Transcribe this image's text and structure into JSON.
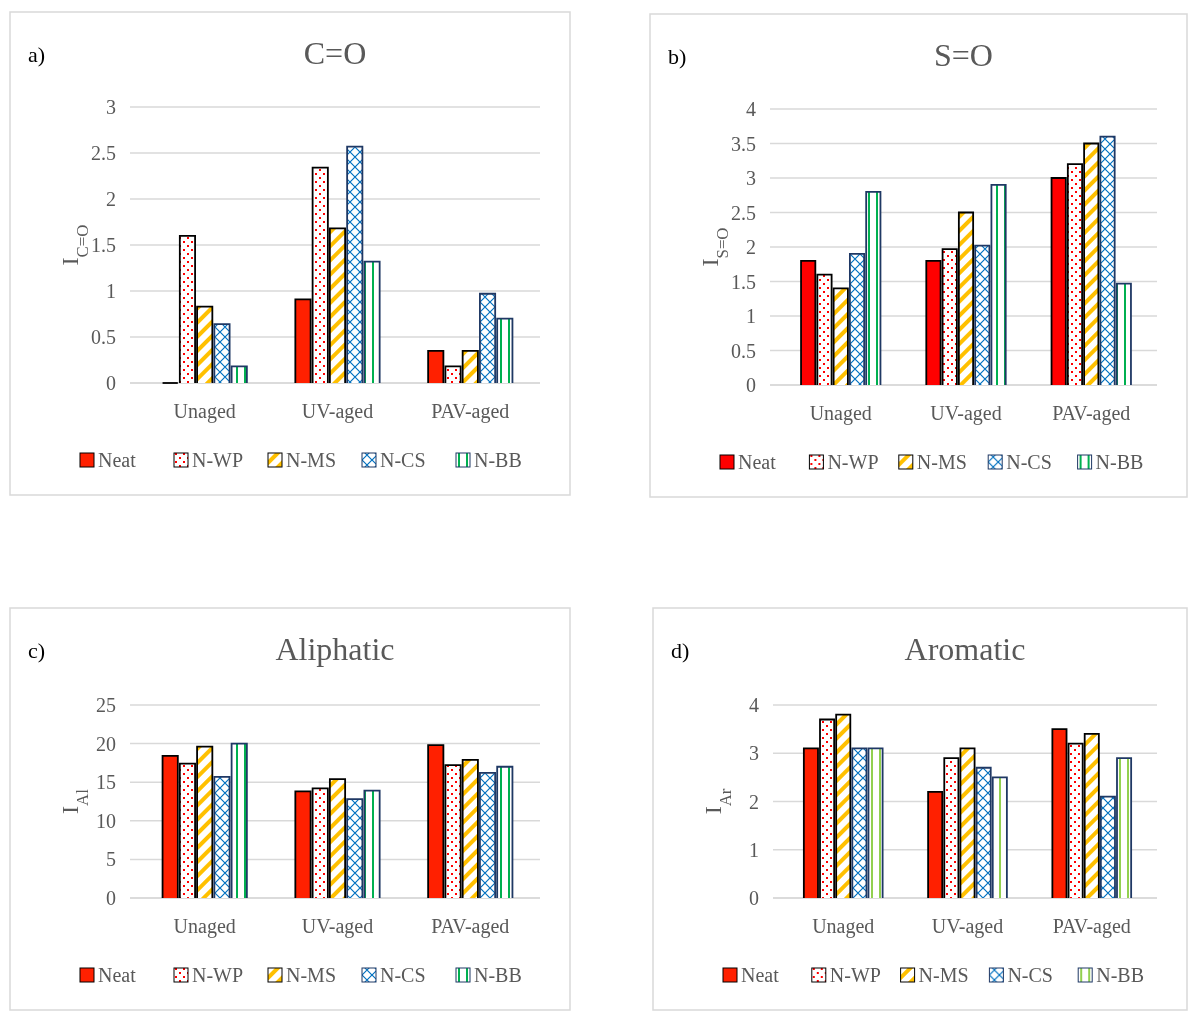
{
  "chart_data": [
    {
      "type": "bar",
      "title": "C=O",
      "ylabel": "I$_{C=O}$",
      "annotations": [
        "a)"
      ],
      "categories": [
        "Unaged",
        "UV-aged",
        "PAV-aged"
      ],
      "ylim": [
        0,
        3
      ],
      "yticks": [
        0,
        0.5,
        1,
        1.5,
        2,
        2.5,
        3
      ],
      "grid": "y",
      "legend": "bottom",
      "series": [
        {
          "name": "Neat",
          "color": "#ff2000",
          "values": [
            0,
            0.91,
            0.35
          ]
        },
        {
          "name": "N-WP",
          "color": "#ff0000",
          "values": [
            1.6,
            2.34,
            0.18
          ]
        },
        {
          "name": "N-MS",
          "color": "#ffc000",
          "values": [
            0.83,
            1.68,
            0.35
          ]
        },
        {
          "name": "N-CS",
          "color": "#0070c0",
          "values": [
            0.64,
            2.57,
            0.97
          ]
        },
        {
          "name": "N-BB",
          "color": "#00b050",
          "values": [
            0.18,
            1.32,
            0.7
          ]
        }
      ]
    },
    {
      "type": "bar",
      "title": "S=O",
      "ylabel": "I$_{S=O}$",
      "annotations": [
        "b)"
      ],
      "categories": [
        "Unaged",
        "UV-aged",
        "PAV-aged"
      ],
      "ylim": [
        0,
        4
      ],
      "yticks": [
        0,
        0.5,
        1,
        1.5,
        2,
        2.5,
        3,
        3.5,
        4
      ],
      "grid": "y",
      "legend": "bottom",
      "series": [
        {
          "name": "Neat",
          "color": "#ff0000",
          "values": [
            1.8,
            1.8,
            3.0
          ]
        },
        {
          "name": "N-WP",
          "color": "#ff0000",
          "values": [
            1.6,
            1.97,
            3.2
          ]
        },
        {
          "name": "N-MS",
          "color": "#ffc000",
          "values": [
            1.4,
            2.5,
            3.5
          ]
        },
        {
          "name": "N-CS",
          "color": "#0070c0",
          "values": [
            1.9,
            2.02,
            3.6
          ]
        },
        {
          "name": "N-BB",
          "color": "#00b050",
          "values": [
            2.8,
            2.9,
            1.47
          ]
        }
      ]
    },
    {
      "type": "bar",
      "title": "Aliphatic",
      "ylabel": "I$_{Al}$",
      "annotations": [
        "c)"
      ],
      "categories": [
        "Unaged",
        "UV-aged",
        "PAV-aged"
      ],
      "ylim": [
        0,
        25
      ],
      "yticks": [
        0,
        5,
        10,
        15,
        20,
        25
      ],
      "grid": "y",
      "legend": "bottom",
      "series": [
        {
          "name": "Neat",
          "color": "#ff2000",
          "values": [
            18.4,
            13.8,
            19.8
          ]
        },
        {
          "name": "N-WP",
          "color": "#ff0000",
          "values": [
            17.4,
            14.2,
            17.2
          ]
        },
        {
          "name": "N-MS",
          "color": "#ffc000",
          "values": [
            19.6,
            15.4,
            17.9
          ]
        },
        {
          "name": "N-CS",
          "color": "#0070c0",
          "values": [
            15.7,
            12.8,
            16.2
          ]
        },
        {
          "name": "N-BB",
          "color": "#00b050",
          "values": [
            20.0,
            13.9,
            17.0
          ]
        }
      ]
    },
    {
      "type": "bar",
      "title": "Aromatic",
      "ylabel": "I$_{Ar}$",
      "annotations": [
        "d)"
      ],
      "categories": [
        "Unaged",
        "UV-aged",
        "PAV-aged"
      ],
      "ylim": [
        0,
        4
      ],
      "yticks": [
        0,
        1,
        2,
        3,
        4
      ],
      "grid": "y",
      "legend": "bottom",
      "series": [
        {
          "name": "Neat",
          "color": "#ff2000",
          "values": [
            3.1,
            2.2,
            3.5
          ]
        },
        {
          "name": "N-WP",
          "color": "#ff0000",
          "values": [
            3.7,
            2.9,
            3.2
          ]
        },
        {
          "name": "N-MS",
          "color": "#ffc000",
          "values": [
            3.8,
            3.1,
            3.4
          ]
        },
        {
          "name": "N-CS",
          "color": "#0070c0",
          "values": [
            3.1,
            2.7,
            2.1
          ]
        },
        {
          "name": "N-BB",
          "color": "#92d050",
          "values": [
            3.1,
            2.5,
            2.9
          ]
        }
      ]
    }
  ]
}
